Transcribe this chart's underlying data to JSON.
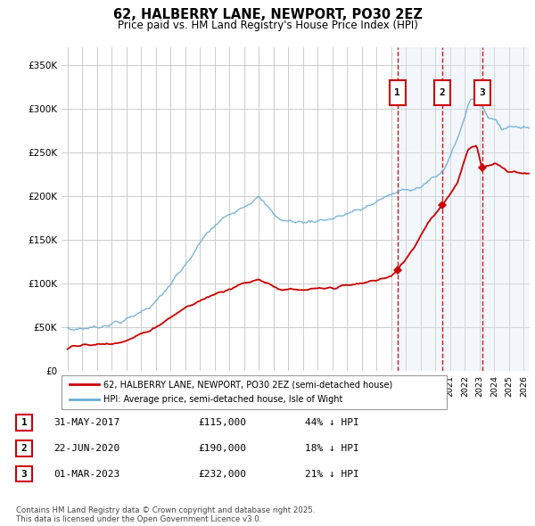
{
  "title": "62, HALBERRY LANE, NEWPORT, PO30 2EZ",
  "subtitle": "Price paid vs. HM Land Registry's House Price Index (HPI)",
  "legend_line1": "62, HALBERRY LANE, NEWPORT, PO30 2EZ (semi-detached house)",
  "legend_line2": "HPI: Average price, semi-detached house, Isle of Wight",
  "property_color": "#cc0000",
  "hpi_color": "#6baed6",
  "ylim": [
    0,
    370000
  ],
  "yticks": [
    0,
    50000,
    100000,
    150000,
    200000,
    250000,
    300000,
    350000
  ],
  "ytick_labels": [
    "£0",
    "£50K",
    "£100K",
    "£150K",
    "£200K",
    "£250K",
    "£300K",
    "£350K"
  ],
  "xlim_start": 1994.6,
  "xlim_end": 2026.4,
  "sales": [
    {
      "date": 2017.42,
      "price": 115000,
      "label": "1",
      "date_str": "31-MAY-2017",
      "price_str": "£115,000",
      "pct": "44% ↓ HPI"
    },
    {
      "date": 2020.47,
      "price": 190000,
      "label": "2",
      "date_str": "22-JUN-2020",
      "price_str": "£190,000",
      "pct": "18% ↓ HPI"
    },
    {
      "date": 2023.17,
      "price": 232000,
      "label": "3",
      "date_str": "01-MAR-2023",
      "price_str": "£232,000",
      "pct": "21% ↓ HPI"
    }
  ],
  "background_color": "#ffffff",
  "grid_color": "#cccccc",
  "footnote": "Contains HM Land Registry data © Crown copyright and database right 2025.\nThis data is licensed under the Open Government Licence v3.0.",
  "vline_color": "#cc0000",
  "shade_color": "#dde8f5",
  "shade_alpha": 0.35
}
